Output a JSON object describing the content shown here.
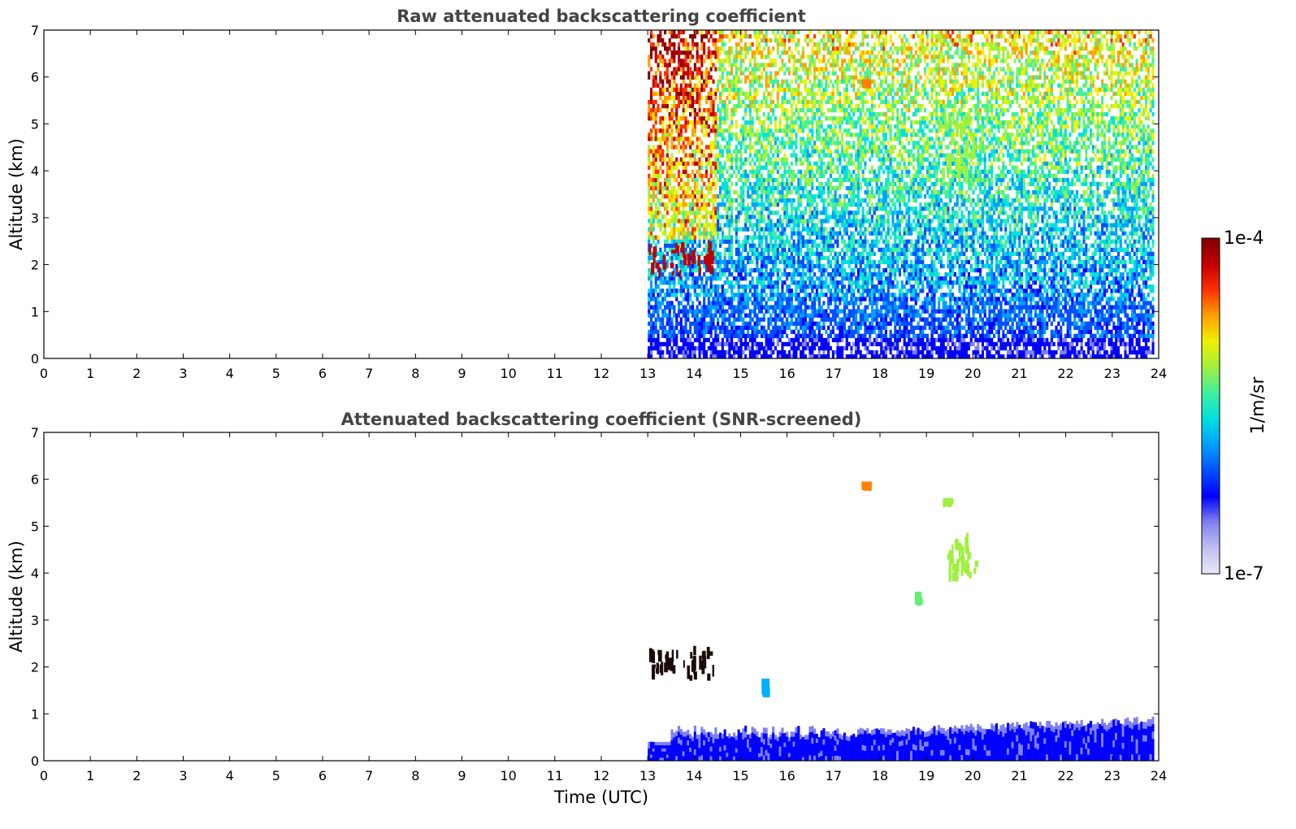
{
  "colors": {
    "axis": "#000000",
    "title": "#444444",
    "colormap": [
      "#e8e8f8",
      "#c0c0f0",
      "#8080f0",
      "#0000ff",
      "#0050ff",
      "#00a0ff",
      "#00e0e0",
      "#40f0a0",
      "#a0f040",
      "#f0f000",
      "#ffa000",
      "#ff3000",
      "#c00000",
      "#800000"
    ]
  },
  "chart_data": [
    {
      "type": "heatmap",
      "title": "Raw attenuated backscattering coefficient",
      "xlabel": "",
      "ylabel": "Altitude (km)",
      "xlim": [
        0,
        24
      ],
      "ylim": [
        0,
        7
      ],
      "xticks": [
        "0",
        "1",
        "2",
        "3",
        "4",
        "5",
        "6",
        "7",
        "8",
        "9",
        "10",
        "11",
        "12",
        "13",
        "14",
        "15",
        "16",
        "17",
        "18",
        "19",
        "20",
        "21",
        "22",
        "23",
        "24"
      ],
      "yticks": [
        "0",
        "1",
        "2",
        "3",
        "4",
        "5",
        "6",
        "7"
      ],
      "data_start_time": 13.0,
      "data_end_time": 23.9,
      "features": [
        {
          "kind": "boundary layer",
          "t": [
            13.0,
            23.9
          ],
          "alt": [
            0.0,
            0.45
          ],
          "level": "low (blue)"
        },
        {
          "kind": "noisy upper region",
          "t": [
            13.0,
            23.9
          ],
          "alt": [
            0.5,
            7.0
          ],
          "level": "increasing with altitude (cyan to yellow)"
        },
        {
          "kind": "cloud",
          "t": [
            13.0,
            14.45
          ],
          "alt": [
            1.7,
            2.5
          ],
          "level": "high (red)"
        },
        {
          "kind": "elevated layer",
          "t": [
            17.6,
            17.75
          ],
          "alt": [
            5.75,
            5.95
          ],
          "level": "orange"
        },
        {
          "kind": "elevated layer",
          "t": [
            19.3,
            20.0
          ],
          "alt": [
            3.7,
            5.6
          ],
          "level": "yellow-green"
        }
      ]
    },
    {
      "type": "heatmap",
      "title": "Attenuated backscattering coefficient (SNR-screened)",
      "xlabel": "Time (UTC)",
      "ylabel": "Altitude (km)",
      "xlim": [
        0,
        24
      ],
      "ylim": [
        0,
        7
      ],
      "xticks": [
        "0",
        "1",
        "2",
        "3",
        "4",
        "5",
        "6",
        "7",
        "8",
        "9",
        "10",
        "11",
        "12",
        "13",
        "14",
        "15",
        "16",
        "17",
        "18",
        "19",
        "20",
        "21",
        "22",
        "23",
        "24"
      ],
      "yticks": [
        "0",
        "1",
        "2",
        "3",
        "4",
        "5",
        "6",
        "7"
      ],
      "data_start_time": 13.0,
      "data_end_time": 23.9,
      "features": [
        {
          "kind": "boundary layer",
          "t": [
            13.0,
            23.9
          ],
          "alt": [
            0.0,
            0.9
          ],
          "level": "low (blue)"
        },
        {
          "kind": "cloud",
          "t": [
            13.0,
            14.45
          ],
          "alt": [
            1.7,
            2.5
          ],
          "level": "saturated (black/dark red)"
        },
        {
          "kind": "elevated layer",
          "t": [
            17.6,
            17.75
          ],
          "alt": [
            5.75,
            5.95
          ],
          "level": "orange"
        },
        {
          "kind": "elevated layer",
          "t": [
            19.35,
            19.5
          ],
          "alt": [
            5.4,
            5.6
          ],
          "level": "yellow-green"
        },
        {
          "kind": "elevated layer",
          "t": [
            19.45,
            20.05
          ],
          "alt": [
            3.8,
            4.9
          ],
          "level": "yellow-green"
        },
        {
          "kind": "elevated layer",
          "t": [
            18.75,
            18.85
          ],
          "alt": [
            3.3,
            3.6
          ],
          "level": "green"
        },
        {
          "kind": "small echo",
          "t": [
            15.45,
            15.55
          ],
          "alt": [
            1.35,
            1.75
          ],
          "level": "cyan"
        }
      ]
    }
  ],
  "colorbar": {
    "max_label": "1e-4",
    "min_label": "1e-7",
    "unit_label": "1/m/sr",
    "scale": "log"
  }
}
